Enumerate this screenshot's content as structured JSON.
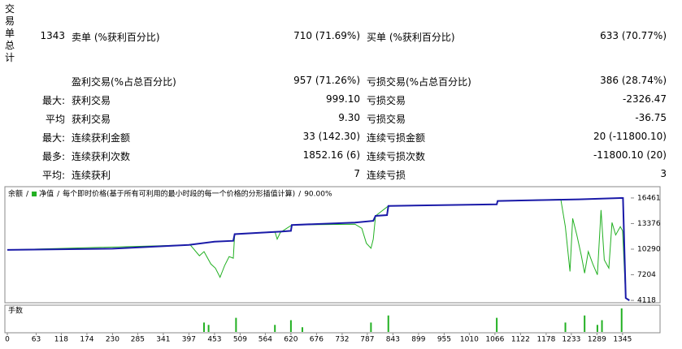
{
  "section_title": "交易单总计",
  "table": {
    "rows": [
      {
        "prefix": "1343",
        "label1": "卖单 (%获利百分比)",
        "value1": "710 (71.69%)",
        "label2": "买单 (%获利百分比)",
        "value2": "633 (70.77%)"
      },
      {
        "label1": "盈利交易(%占总百分比)",
        "value1": "957 (71.26%)",
        "label2": "亏损交易(%占总百分比)",
        "value2": "386 (28.74%)"
      },
      {
        "prefix": "最大:",
        "label1": "获利交易",
        "value1": "999.10",
        "label2": "亏损交易",
        "value2": "-2326.47"
      },
      {
        "prefix": "平均",
        "label1": "获利交易",
        "value1": "9.30",
        "label2": "亏损交易",
        "value2": "-36.75"
      },
      {
        "prefix": "最大:",
        "label1": "连续获利金额",
        "value1": "33 (142.30)",
        "label2": "连续亏损金额",
        "value2": "20 (-11800.10)"
      },
      {
        "prefix": "最多:",
        "label1": "连续获利次数",
        "value1": "1852.16 (6)",
        "label2": "连续亏损次数",
        "value2": "-11800.10 (20)"
      },
      {
        "prefix": "平均:",
        "label1": "连续获利",
        "value1": "7",
        "label2": "连续亏损",
        "value2": "3"
      }
    ]
  },
  "chart_data": {
    "type": "line",
    "legend_separator": "/",
    "mode_label": "每个即时价格(基于所有可利用的最小时段的每一个价格的分形插值计算)",
    "quality_label": "90.00%",
    "volume_label": "手数",
    "series": [
      {
        "name": "余额",
        "color": "#1a1aa8",
        "x": [
          0,
          230,
          397,
          453,
          494,
          497,
          597,
          620,
          622,
          760,
          800,
          805,
          830,
          833,
          1070,
          1072,
          1250,
          1343,
          1346,
          1352,
          1360
        ],
        "values": [
          10200,
          10350,
          10800,
          11200,
          11300,
          12100,
          12400,
          12500,
          13200,
          13500,
          13700,
          14300,
          14400,
          15500,
          15700,
          16100,
          16300,
          16461,
          16450,
          4400,
          4118
        ]
      },
      {
        "name": "净值",
        "color": "#22b022",
        "x": [
          0,
          400,
          420,
          430,
          445,
          455,
          465,
          470,
          475,
          485,
          494,
          497,
          585,
          590,
          597,
          622,
          760,
          775,
          785,
          795,
          800,
          805,
          833,
          1070,
          1072,
          1210,
          1220,
          1230,
          1236,
          1245,
          1255,
          1262,
          1270,
          1280,
          1290,
          1298,
          1305,
          1315,
          1322,
          1330,
          1340,
          1345,
          1352,
          1360
        ],
        "values": [
          10200,
          10800,
          9500,
          10000,
          8500,
          8000,
          6900,
          7600,
          8300,
          9400,
          9200,
          12100,
          12400,
          11500,
          12300,
          13200,
          13300,
          12800,
          11000,
          10400,
          11500,
          14300,
          15500,
          15700,
          16100,
          16300,
          13000,
          7600,
          14000,
          12000,
          9500,
          7400,
          10000,
          8500,
          7200,
          15000,
          9000,
          8000,
          13500,
          12000,
          13000,
          12500,
          4400,
          4118
        ]
      }
    ],
    "volume": {
      "color": "#22b022",
      "x": [
        430,
        440,
        500,
        585,
        620,
        645,
        795,
        833,
        1070,
        1220,
        1262,
        1290,
        1300,
        1343
      ],
      "values": [
        0.4,
        0.3,
        0.6,
        0.3,
        0.5,
        0.2,
        0.4,
        0.7,
        0.6,
        0.4,
        0.7,
        0.3,
        0.5,
        1.0
      ],
      "ylim": [
        0,
        1
      ]
    },
    "xlim": [
      0,
      1363
    ],
    "ylim": [
      3930,
      17724
    ],
    "xticks": [
      0,
      63,
      118,
      174,
      230,
      285,
      341,
      397,
      453,
      509,
      564,
      620,
      676,
      732,
      787,
      843,
      899,
      955,
      1010,
      1066,
      1122,
      1178,
      1233,
      1289,
      1345
    ],
    "yticks": [
      4118,
      7204,
      10290,
      13376,
      16461
    ]
  }
}
